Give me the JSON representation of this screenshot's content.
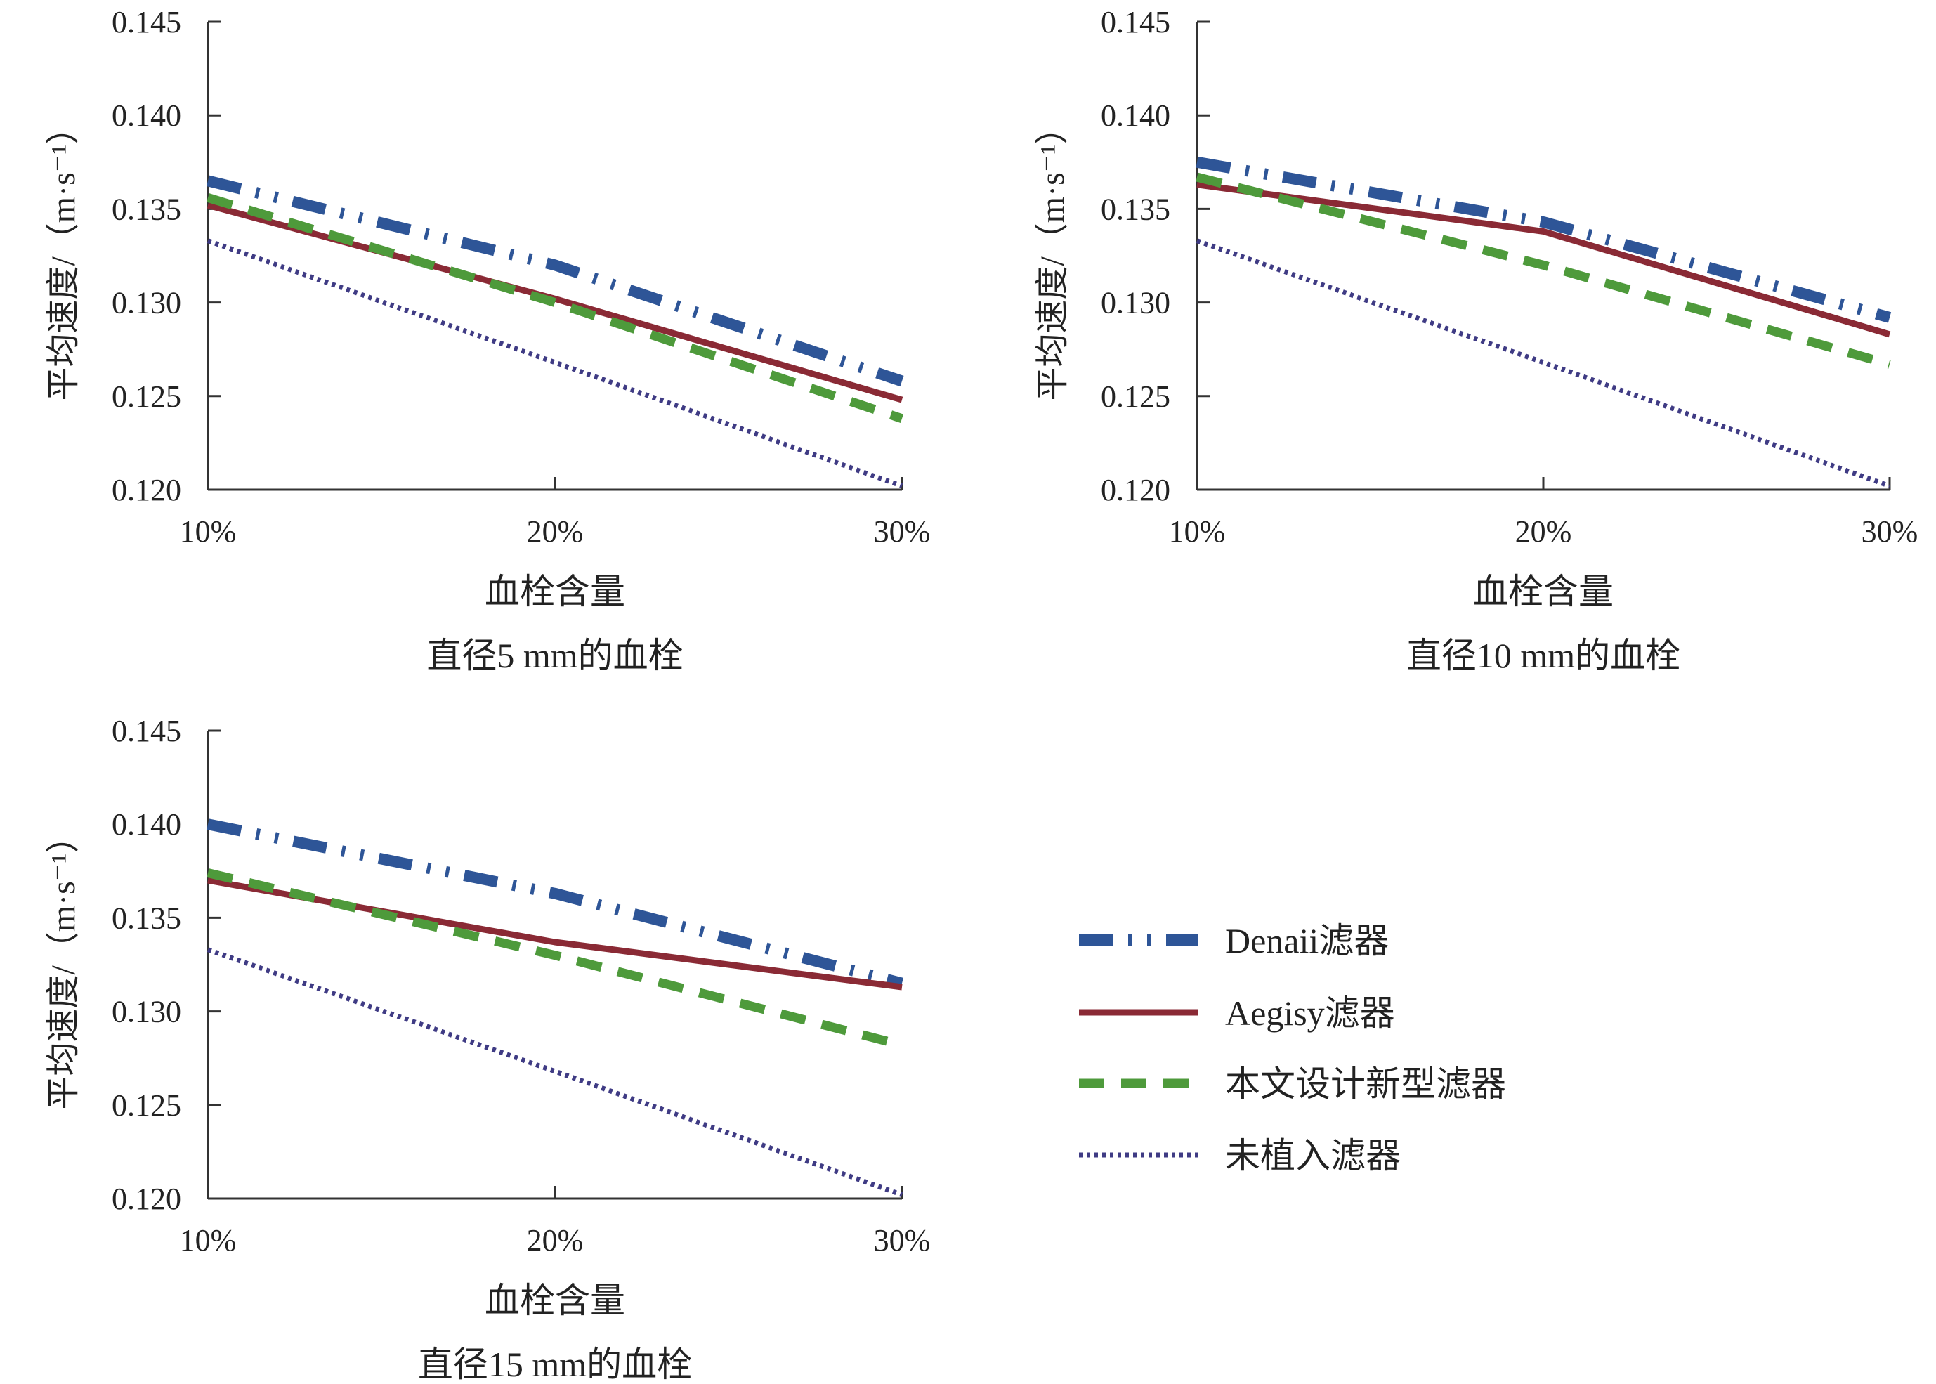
{
  "legend": {
    "items": [
      {
        "series": "denaii",
        "label": "Denaii滤器"
      },
      {
        "series": "aegisy",
        "label": "Aegisy滤器"
      },
      {
        "series": "new",
        "label": "本文设计新型滤器"
      },
      {
        "series": "none",
        "label": "未植入滤器"
      }
    ]
  },
  "styles": {
    "denaii": {
      "color": "#2e5597",
      "pattern": "dash-dot-dot"
    },
    "aegisy": {
      "color": "#8a2a35",
      "pattern": "solid"
    },
    "new": {
      "color": "#4e9a3b",
      "pattern": "dashed"
    },
    "none": {
      "color": "#3f3b84",
      "pattern": "dotted"
    }
  },
  "chart_data": [
    {
      "type": "line",
      "title": "直径5 mm的血栓",
      "xlabel": "血栓含量",
      "ylabel": "平均速度/（m·s⁻¹）",
      "categories": [
        "10%",
        "20%",
        "30%"
      ],
      "ylim": [
        0.12,
        0.145
      ],
      "yticks": [
        "0.120",
        "0.125",
        "0.130",
        "0.135",
        "0.140",
        "0.145"
      ],
      "series": [
        {
          "key": "denaii",
          "name": "Denaii滤器",
          "values": [
            0.1365,
            0.132,
            0.1258
          ]
        },
        {
          "key": "aegisy",
          "name": "Aegisy滤器",
          "values": [
            0.1352,
            0.1302,
            0.1248
          ]
        },
        {
          "key": "new",
          "name": "本文设计新型滤器",
          "values": [
            0.1356,
            0.13,
            0.1238
          ]
        },
        {
          "key": "none",
          "name": "未植入滤器",
          "values": [
            0.1333,
            0.1268,
            0.1202
          ]
        }
      ]
    },
    {
      "type": "line",
      "title": "直径10 mm的血栓",
      "xlabel": "血栓含量",
      "ylabel": "平均速度/（m·s⁻¹）",
      "categories": [
        "10%",
        "20%",
        "30%"
      ],
      "ylim": [
        0.12,
        0.145
      ],
      "yticks": [
        "0.120",
        "0.125",
        "0.130",
        "0.135",
        "0.140",
        "0.145"
      ],
      "series": [
        {
          "key": "denaii",
          "name": "Denaii滤器",
          "values": [
            0.1375,
            0.1343,
            0.1292
          ]
        },
        {
          "key": "aegisy",
          "name": "Aegisy滤器",
          "values": [
            0.1363,
            0.1338,
            0.1283
          ]
        },
        {
          "key": "new",
          "name": "本文设计新型滤器",
          "values": [
            0.1367,
            0.132,
            0.1267
          ]
        },
        {
          "key": "none",
          "name": "未植入滤器",
          "values": [
            0.1333,
            0.1268,
            0.1202
          ]
        }
      ]
    },
    {
      "type": "line",
      "title": "直径15 mm的血栓",
      "xlabel": "血栓含量",
      "ylabel": "平均速度/（m·s⁻¹）",
      "categories": [
        "10%",
        "20%",
        "30%"
      ],
      "ylim": [
        0.12,
        0.145
      ],
      "yticks": [
        "0.120",
        "0.125",
        "0.130",
        "0.135",
        "0.140",
        "0.145"
      ],
      "series": [
        {
          "key": "denaii",
          "name": "Denaii滤器",
          "values": [
            0.14,
            0.1363,
            0.1315
          ]
        },
        {
          "key": "aegisy",
          "name": "Aegisy滤器",
          "values": [
            0.137,
            0.1337,
            0.1313
          ]
        },
        {
          "key": "new",
          "name": "本文设计新型滤器",
          "values": [
            0.1374,
            0.133,
            0.1282
          ]
        },
        {
          "key": "none",
          "name": "未植入滤器",
          "values": [
            0.1333,
            0.1268,
            0.1202
          ]
        }
      ]
    }
  ]
}
